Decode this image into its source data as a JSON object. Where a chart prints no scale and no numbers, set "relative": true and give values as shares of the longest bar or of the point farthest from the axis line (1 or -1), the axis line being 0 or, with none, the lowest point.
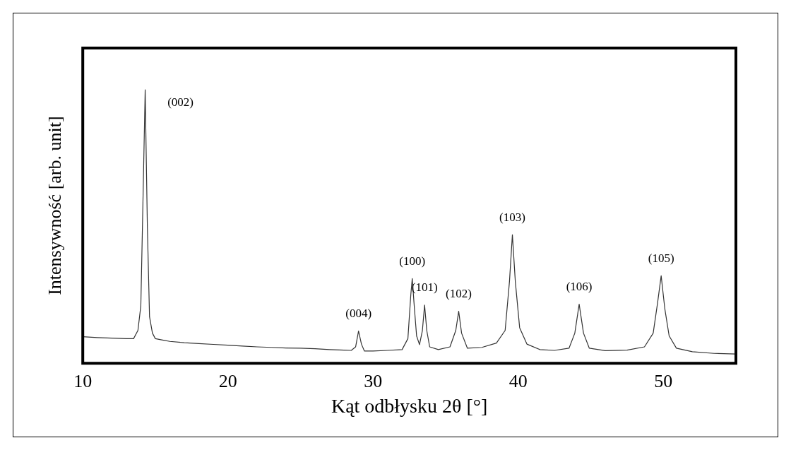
{
  "chart_data": {
    "type": "line",
    "xlabel": "Kąt odbłysku 2θ [°]",
    "ylabel": "Intensywność [arb. unit]",
    "relative": true,
    "xlim": [
      10,
      55
    ],
    "xticks": [
      10,
      20,
      30,
      40,
      50
    ],
    "grid": false,
    "legend": false,
    "marker": "none",
    "x": [
      10,
      11,
      12,
      13,
      13.5,
      13.8,
      14.0,
      14.15,
      14.3,
      14.45,
      14.6,
      14.8,
      15,
      15.5,
      16,
      17,
      18,
      19,
      20,
      21,
      22,
      23,
      24,
      25,
      26,
      27,
      28,
      28.5,
      28.8,
      29.0,
      29.2,
      29.4,
      30,
      31,
      32,
      32.4,
      32.6,
      32.7,
      32.85,
      33.0,
      33.2,
      33.4,
      33.55,
      33.7,
      33.9,
      34.5,
      35.3,
      35.7,
      35.9,
      36.1,
      36.5,
      37.5,
      38.5,
      39.1,
      39.4,
      39.6,
      39.8,
      40.1,
      40.6,
      41.5,
      42.5,
      43.5,
      43.9,
      44.2,
      44.5,
      44.9,
      46,
      47.5,
      48.7,
      49.3,
      49.6,
      49.85,
      50.1,
      50.4,
      50.9,
      52,
      53.5,
      55
    ],
    "values": [
      0.097,
      0.094,
      0.092,
      0.09,
      0.09,
      0.12,
      0.21,
      0.6,
      1,
      0.5,
      0.17,
      0.11,
      0.09,
      0.085,
      0.08,
      0.075,
      0.072,
      0.069,
      0.066,
      0.063,
      0.06,
      0.058,
      0.056,
      0.055,
      0.053,
      0.05,
      0.048,
      0.047,
      0.06,
      0.118,
      0.07,
      0.045,
      0.045,
      0.047,
      0.05,
      0.09,
      0.25,
      0.31,
      0.2,
      0.1,
      0.068,
      0.12,
      0.213,
      0.12,
      0.06,
      0.05,
      0.06,
      0.12,
      0.19,
      0.11,
      0.055,
      0.058,
      0.074,
      0.12,
      0.3,
      0.47,
      0.3,
      0.13,
      0.07,
      0.05,
      0.047,
      0.055,
      0.11,
      0.216,
      0.11,
      0.055,
      0.046,
      0.048,
      0.06,
      0.11,
      0.22,
      0.32,
      0.2,
      0.1,
      0.055,
      0.042,
      0.036,
      0.034
    ],
    "color": "#333333",
    "annotations": [
      {
        "text": "(002)",
        "x": 14.3,
        "y": 1
      },
      {
        "text": "(004)",
        "x": 29.0,
        "y": 0.118
      },
      {
        "text": "(100)",
        "x": 32.7,
        "y": 0.31
      },
      {
        "text": "(101)",
        "x": 33.55,
        "y": 0.213
      },
      {
        "text": "(102)",
        "x": 35.9,
        "y": 0.19
      },
      {
        "text": "(103)",
        "x": 39.6,
        "y": 0.47
      },
      {
        "text": "(106)",
        "x": 44.2,
        "y": 0.216
      },
      {
        "text": "(105)",
        "x": 49.85,
        "y": 0.32
      }
    ]
  }
}
